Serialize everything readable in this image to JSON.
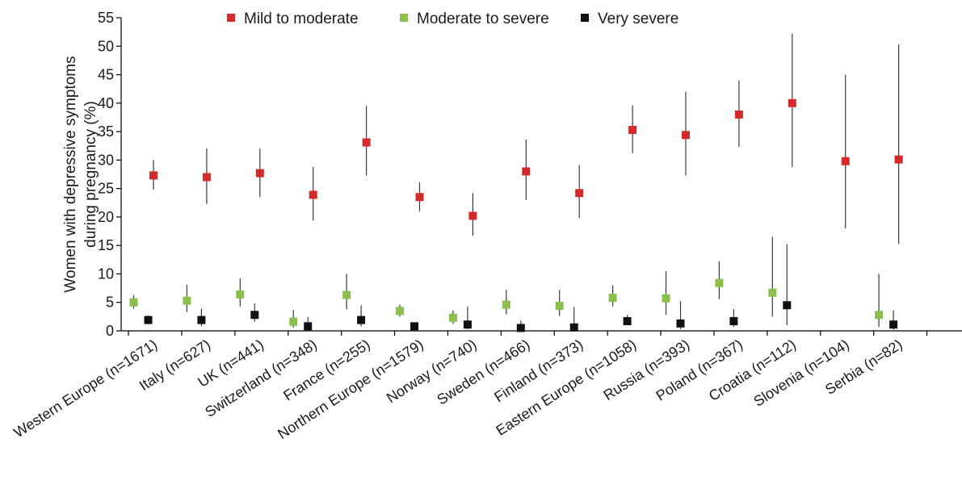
{
  "chart_data": {
    "type": "scatter",
    "ylabel": "Women with depressive symptoms during pregnancy (%)",
    "ylabel_lines": [
      "Women with depressive symptoms",
      "during pregnancy (%)"
    ],
    "ylim": [
      0,
      55
    ],
    "yticks": [
      0,
      5,
      10,
      15,
      20,
      25,
      30,
      35,
      40,
      45,
      50,
      55
    ],
    "grid": false,
    "legend_position": "top",
    "categories": [
      "Western Europe (n=1671)",
      "Italy (n=627)",
      "UK (n=441)",
      "Switzerland (n=348)",
      "France (n=255)",
      "Northern Europe (n=1579)",
      "Norway (n=740)",
      "Sweden (n=466)",
      "Finland (n=373)",
      "Eastern Europe (n=1058)",
      "Russia (n=393)",
      "Poland (n=367)",
      "Croatia (n=112)",
      "Slovenia (n=104)",
      "Serbia (n=82)"
    ],
    "series": [
      {
        "name": "Mild to moderate",
        "color": "#d42a2a",
        "values": [
          27.3,
          27.0,
          27.7,
          23.9,
          33.1,
          23.5,
          20.2,
          28.0,
          24.2,
          35.3,
          34.4,
          38.0,
          40.0,
          29.8,
          30.1
        ],
        "ci_low": [
          24.8,
          22.3,
          23.5,
          19.4,
          27.3,
          21.0,
          16.7,
          23.0,
          19.8,
          31.2,
          27.3,
          32.3,
          28.8,
          18.0,
          15.3
        ],
        "ci_high": [
          30.0,
          32.0,
          32.0,
          28.8,
          39.5,
          26.1,
          24.2,
          33.6,
          29.1,
          39.6,
          42.0,
          44.0,
          52.2,
          45.0,
          50.3
        ]
      },
      {
        "name": "Moderate to severe",
        "color": "#8cbf4e",
        "values": [
          5.0,
          5.3,
          6.4,
          1.6,
          6.3,
          3.5,
          2.3,
          4.6,
          4.4,
          5.8,
          5.7,
          8.4,
          6.7,
          null,
          2.8
        ],
        "ci_low": [
          3.9,
          3.3,
          4.3,
          0.6,
          3.8,
          2.5,
          1.2,
          2.9,
          2.6,
          4.3,
          2.8,
          5.6,
          2.5,
          null,
          0.7
        ],
        "ci_high": [
          6.3,
          8.1,
          9.2,
          3.7,
          10.0,
          4.6,
          3.6,
          7.2,
          7.2,
          8.0,
          10.5,
          12.2,
          16.5,
          null,
          10.0
        ]
      },
      {
        "name": "Very severe",
        "color": "#111111",
        "values": [
          1.9,
          1.9,
          2.8,
          0.8,
          1.9,
          0.8,
          1.1,
          0.5,
          0.6,
          1.7,
          1.3,
          1.7,
          4.5,
          null,
          1.1
        ],
        "ci_low": [
          1.3,
          0.8,
          1.6,
          0.2,
          0.8,
          0.4,
          0.3,
          0.0,
          0.0,
          1.0,
          0.3,
          0.7,
          1.0,
          null,
          0.2
        ],
        "ci_high": [
          2.7,
          3.9,
          4.8,
          2.4,
          4.5,
          1.4,
          4.3,
          1.8,
          4.2,
          2.8,
          5.2,
          3.8,
          15.2,
          null,
          3.6
        ]
      }
    ]
  }
}
